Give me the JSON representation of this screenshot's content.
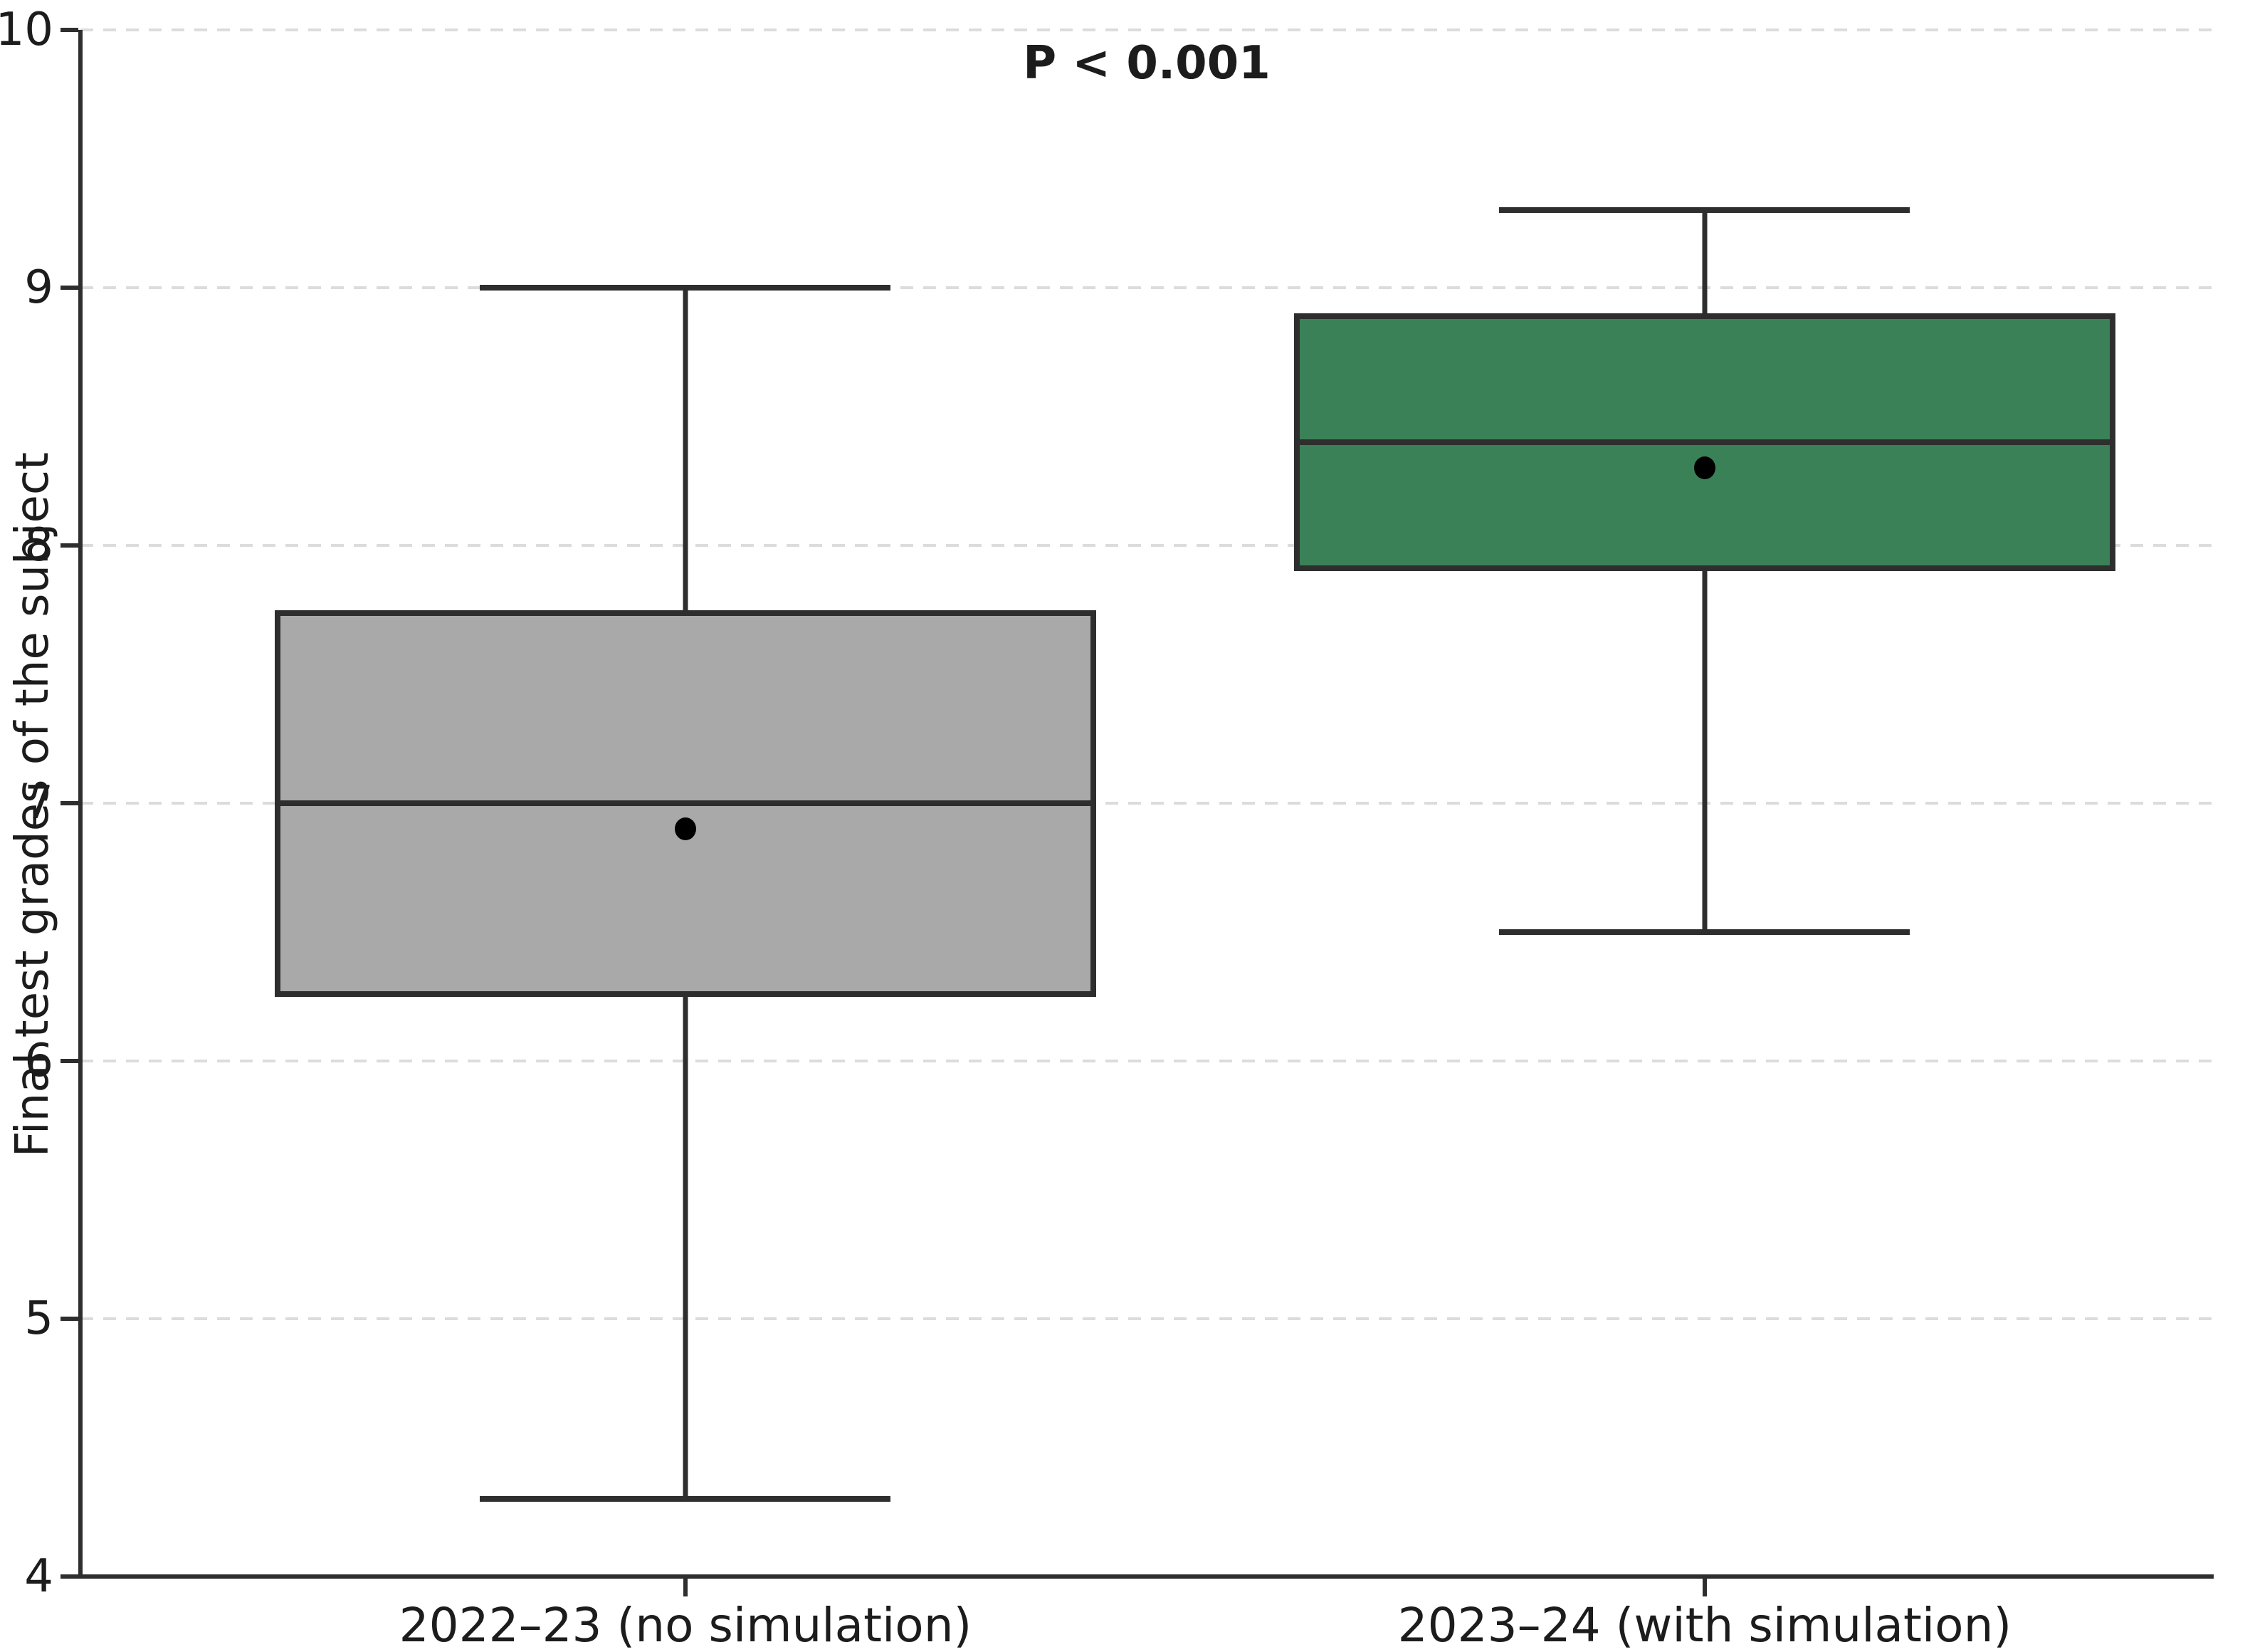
{
  "figure": {
    "annotation": "P < 0.001",
    "ylabel": "Final test grades of the subject"
  },
  "chart_data": {
    "type": "box",
    "title": "P < 0.001",
    "xlabel": "",
    "ylabel": "Final test grades of the subject",
    "ylim": [
      4,
      10
    ],
    "yticks": [
      10,
      9,
      8,
      7,
      6,
      5,
      4
    ],
    "grid": "horizontal-dashed",
    "legend_position": "none",
    "categories": [
      "2022–23 (no simulation)",
      "2023–24 (with simulation)"
    ],
    "series": [
      {
        "label": "2022–23 (no simulation)",
        "whisker_low": 4.3,
        "q1": 6.25,
        "median": 7.0,
        "q3": 7.75,
        "whisker_high": 9.0,
        "mean": 6.9,
        "fill_color": "#a9a9a9"
      },
      {
        "label": "2023–24 (with simulation)",
        "whisker_low": 6.5,
        "q1": 7.9,
        "median": 8.4,
        "q3": 8.9,
        "whisker_high": 9.3,
        "mean": 8.3,
        "fill_color": "#3b8157"
      }
    ],
    "colors": {
      "edge": "#2e2e2e",
      "grid": "#dcdcdc",
      "text": "#1c1c1c",
      "mean_dot": "#000000"
    },
    "layout": {
      "centers_frac": [
        0.2836,
        0.7614
      ],
      "box_width_frac": 0.385,
      "cap_width_frac": 0.1925
    }
  }
}
